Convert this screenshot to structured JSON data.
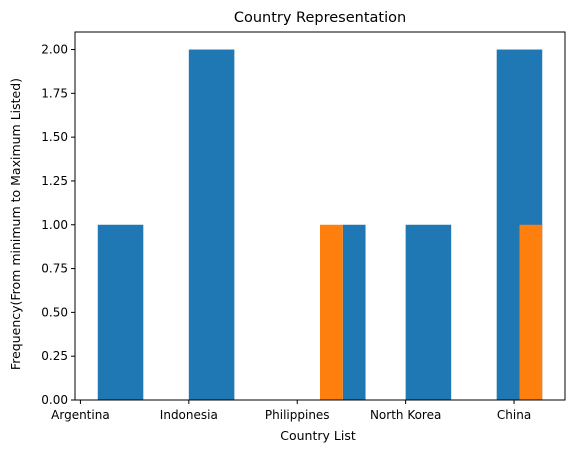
{
  "chart_data": {
    "type": "bar",
    "title": "Country Representation",
    "xlabel": "Country List",
    "ylabel": "Frequency(From minimum to Maximum Listed)",
    "categories": [
      "Argentina",
      "Indonesia",
      "Philippines",
      "North Korea",
      "China"
    ],
    "ylim": [
      0,
      2.1
    ],
    "yticks": [
      "0.00",
      "0.25",
      "0.50",
      "0.75",
      "1.00",
      "1.25",
      "1.50",
      "1.75",
      "2.00"
    ],
    "grid": false,
    "series": [
      {
        "color": "#1f77b4",
        "bars": [
          {
            "x_start": 0.16,
            "x_end": 0.58,
            "value": 1
          },
          {
            "x_start": 1.0,
            "x_end": 1.42,
            "value": 2
          },
          {
            "x_start": 2.42,
            "x_end": 2.63,
            "value": 1
          },
          {
            "x_start": 3.0,
            "x_end": 3.42,
            "value": 1
          },
          {
            "x_start": 3.84,
            "x_end": 4.26,
            "value": 2
          }
        ]
      },
      {
        "color": "#ff7f0e",
        "bars": [
          {
            "x_start": 2.21,
            "x_end": 2.42,
            "value": 1
          },
          {
            "x_start": 4.05,
            "x_end": 4.26,
            "value": 1
          }
        ]
      }
    ]
  }
}
